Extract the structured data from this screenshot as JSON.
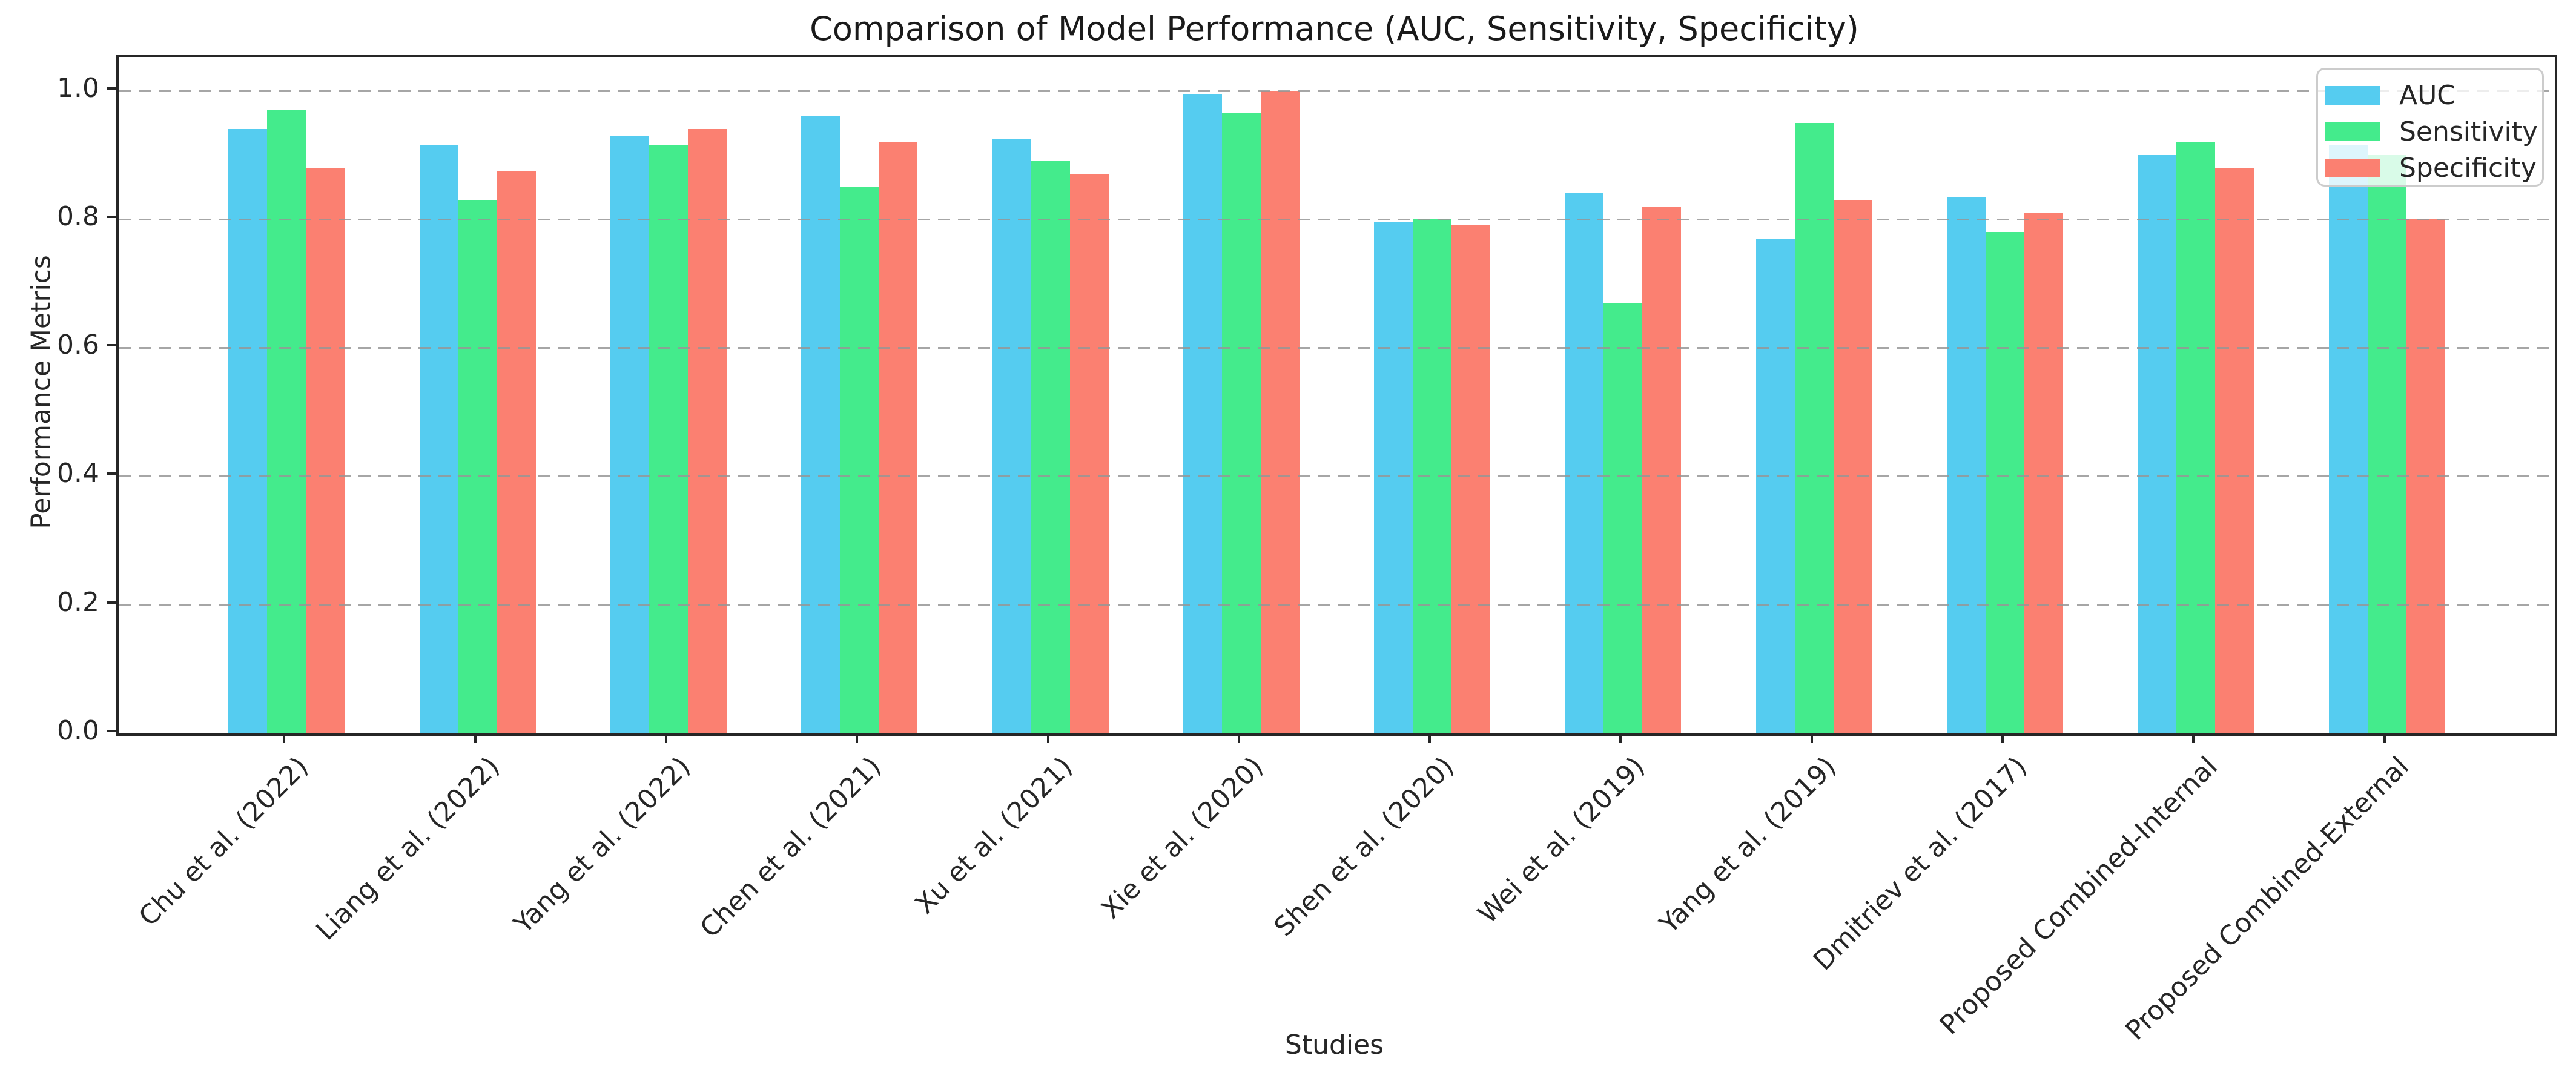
{
  "figure": {
    "title": "Comparison of Model Performance (AUC, Sensitivity, Specificity)",
    "xlabel": "Studies",
    "ylabel": "Performance Metrics"
  },
  "legend": {
    "position": "upper right",
    "entries": [
      "AUC",
      "Sensitivity",
      "Specificity"
    ]
  },
  "chart_data": {
    "type": "bar",
    "title": "Comparison of Model Performance (AUC, Sensitivity, Specificity)",
    "xlabel": "Studies",
    "ylabel": "Performance Metrics",
    "ylim": [
      0,
      1.052
    ],
    "yticks": [
      0.0,
      0.2,
      0.4,
      0.6,
      0.8,
      1.0
    ],
    "grid": "horizontal-dashed-above-bars",
    "grid_color": "#aaaaaa",
    "legend_position": "upper right",
    "background_color": "#ffffff",
    "categories": [
      "Chu et al. (2022)",
      "Liang et al. (2022)",
      "Yang et al. (2022)",
      "Chen et al. (2021)",
      "Xu et al. (2021)",
      "Xie et al. (2020)",
      "Shen et al. (2020)",
      "Wei et al. (2019)",
      "Yang et al. (2019)",
      "Dmitriev et al. (2017)",
      "Proposed Combined-Internal",
      "Proposed Combined-External"
    ],
    "series": [
      {
        "name": "AUC",
        "color": "#55CCF0",
        "values": [
          0.94,
          0.915,
          0.93,
          0.96,
          0.925,
          0.995,
          0.795,
          0.84,
          0.77,
          0.835,
          0.9,
          0.915
        ]
      },
      {
        "name": "Sensitivity",
        "color": "#44EB8C",
        "values": [
          0.97,
          0.83,
          0.915,
          0.85,
          0.89,
          0.965,
          0.8,
          0.67,
          0.95,
          0.78,
          0.92,
          0.9
        ]
      },
      {
        "name": "Specificity",
        "color": "#FB8071",
        "values": [
          0.88,
          0.875,
          0.94,
          0.92,
          0.87,
          1.0,
          0.79,
          0.82,
          0.83,
          0.81,
          0.88,
          0.8
        ]
      }
    ]
  }
}
